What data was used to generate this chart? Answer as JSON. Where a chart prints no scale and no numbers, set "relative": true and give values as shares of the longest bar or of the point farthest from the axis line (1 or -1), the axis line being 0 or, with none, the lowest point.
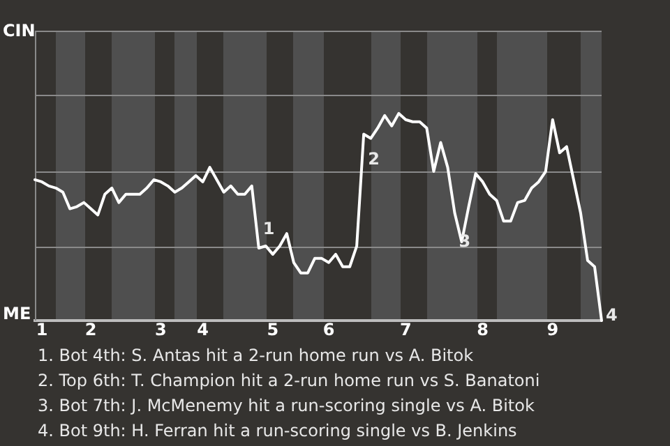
{
  "chart_data": {
    "type": "line",
    "marker": "none",
    "relative": true,
    "categories": [
      null,
      "1",
      null,
      null,
      null,
      null,
      null,
      null,
      "2",
      null,
      null,
      null,
      null,
      null,
      null,
      null,
      null,
      null,
      "3",
      null,
      null,
      null,
      null,
      null,
      "4",
      null,
      null,
      null,
      null,
      null,
      null,
      null,
      null,
      null,
      "5",
      null,
      null,
      null,
      null,
      null,
      null,
      null,
      "6",
      null,
      null,
      null,
      null,
      null,
      null,
      null,
      null,
      null,
      null,
      "7",
      null,
      null,
      null,
      null,
      null,
      null,
      null,
      null,
      null,
      null,
      "8",
      null,
      null,
      null,
      null,
      null,
      null,
      null,
      null,
      null,
      "9",
      null,
      null,
      null,
      null,
      null,
      null,
      null
    ],
    "series": [
      {
        "color": "#ffffff",
        "values": [
          0.68,
          0.67,
          0.65,
          0.64,
          0.62,
          0.54,
          0.55,
          0.57,
          0.54,
          0.51,
          0.61,
          0.64,
          0.57,
          0.61,
          0.61,
          0.61,
          0.64,
          0.68,
          0.67,
          0.65,
          0.62,
          0.64,
          0.67,
          0.7,
          0.67,
          0.74,
          0.68,
          0.62,
          0.65,
          0.61,
          0.61,
          0.65,
          0.35,
          0.36,
          0.32,
          0.36,
          0.42,
          0.28,
          0.23,
          0.23,
          0.3,
          0.3,
          0.28,
          0.32,
          0.26,
          0.26,
          0.36,
          0.9,
          0.88,
          0.93,
          0.99,
          0.94,
          1,
          0.97,
          0.96,
          0.96,
          0.93,
          0.72,
          0.86,
          0.74,
          0.52,
          0.38,
          0.55,
          0.71,
          0.67,
          0.61,
          0.58,
          0.48,
          0.48,
          0.57,
          0.58,
          0.64,
          0.67,
          0.72,
          0.97,
          0.81,
          0.84,
          0.68,
          0.52,
          0.29,
          0.26,
          0
        ]
      }
    ],
    "ref_lines": [
      {
        "axis": "y",
        "value": 0.36,
        "color": "#8a8a8a"
      },
      {
        "axis": "y",
        "value": 0.72,
        "color": "#8a8a8a"
      },
      {
        "axis": "y",
        "value": 1.09,
        "color": "#8a8a8a"
      }
    ],
    "annotations": [
      "CIN",
      "ME",
      "1",
      "2",
      "3",
      "4",
      "1. Bot 4th: S. Antas hit a 2-run home run vs A. Bitok",
      "2. Top 6th: T. Champion hit a 2-run home run vs S. Banatoni",
      "3. Bot 7th: J. McMenemy hit a run-scoring single vs A. Bitok",
      "4. Bot 9th: H. Ferran hit a run-scoring single vs B. Jenkins"
    ]
  }
}
